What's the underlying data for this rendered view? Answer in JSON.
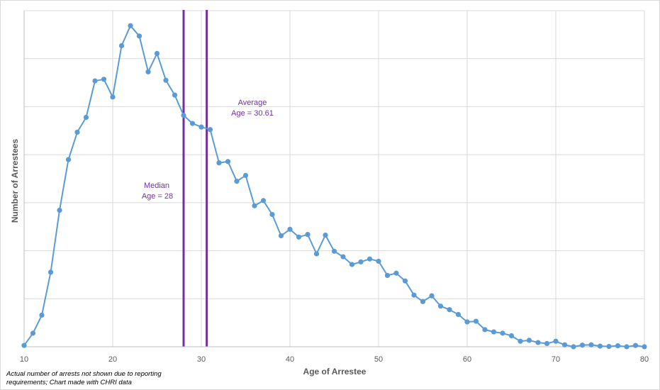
{
  "chart_data": {
    "type": "line",
    "title": "",
    "xlabel": "Age of Arrestee",
    "ylabel": "Number of Arrestees",
    "xlim": [
      10,
      80
    ],
    "x_ticks": [
      10,
      20,
      30,
      40,
      50,
      60,
      70,
      80
    ],
    "ylim": [
      0,
      100
    ],
    "y_ticks_labeled": false,
    "grid": true,
    "legend": "none",
    "series": [
      {
        "color": "#5b9bd5",
        "x": [
          10,
          11,
          12,
          13,
          14,
          15,
          16,
          17,
          18,
          19,
          20,
          21,
          22,
          23,
          24,
          25,
          26,
          27,
          28,
          29,
          30,
          31,
          32,
          33,
          34,
          35,
          36,
          37,
          38,
          39,
          40,
          41,
          42,
          43,
          44,
          45,
          46,
          47,
          48,
          49,
          50,
          51,
          52,
          53,
          54,
          55,
          56,
          57,
          58,
          59,
          60,
          61,
          62,
          63,
          64,
          65,
          66,
          67,
          68,
          69,
          70,
          71,
          72,
          73,
          74,
          75,
          76,
          77,
          78,
          79,
          80
        ],
        "values": [
          0.4,
          4.2,
          9.8,
          23.1,
          42.3,
          58.0,
          66.5,
          71.1,
          82.4,
          82.9,
          77.4,
          93.3,
          99.5,
          96.3,
          85.2,
          90.9,
          82.6,
          78.0,
          71.7,
          69.2,
          68.1,
          67.3,
          57.0,
          57.4,
          51.3,
          53.1,
          43.7,
          45.3,
          41.0,
          34.4,
          36.4,
          34.0,
          34.8,
          28.8,
          34.6,
          29.6,
          27.9,
          25.5,
          26.3,
          27.2,
          26.5,
          22.1,
          22.8,
          20.4,
          16.0,
          14.0,
          15.8,
          12.6,
          11.5,
          10.0,
          7.7,
          7.9,
          5.3,
          4.6,
          4.2,
          3.4,
          1.7,
          2.0,
          1.3,
          1.0,
          1.7,
          0.6,
          0.0,
          0.5,
          0.6,
          0.2,
          0.1,
          0.3,
          0.0,
          0.4,
          0.0
        ]
      }
    ],
    "reference_lines": [
      {
        "x": 28,
        "color": "#7030a0",
        "label_line1": "Median",
        "label_line2": "Age = 28"
      },
      {
        "x": 30.61,
        "color": "#7030a0",
        "label_line1": "Average",
        "label_line2": "Age = 30.61"
      }
    ],
    "footnote_line1": "Actual number of arrests not shown due to reporting",
    "footnote_line2": "requirements; Chart made with CHRI data",
    "colors": {
      "gridline": "#d9d9d9",
      "axis": "#bfbfbf",
      "annotation": "#7030a0"
    }
  }
}
